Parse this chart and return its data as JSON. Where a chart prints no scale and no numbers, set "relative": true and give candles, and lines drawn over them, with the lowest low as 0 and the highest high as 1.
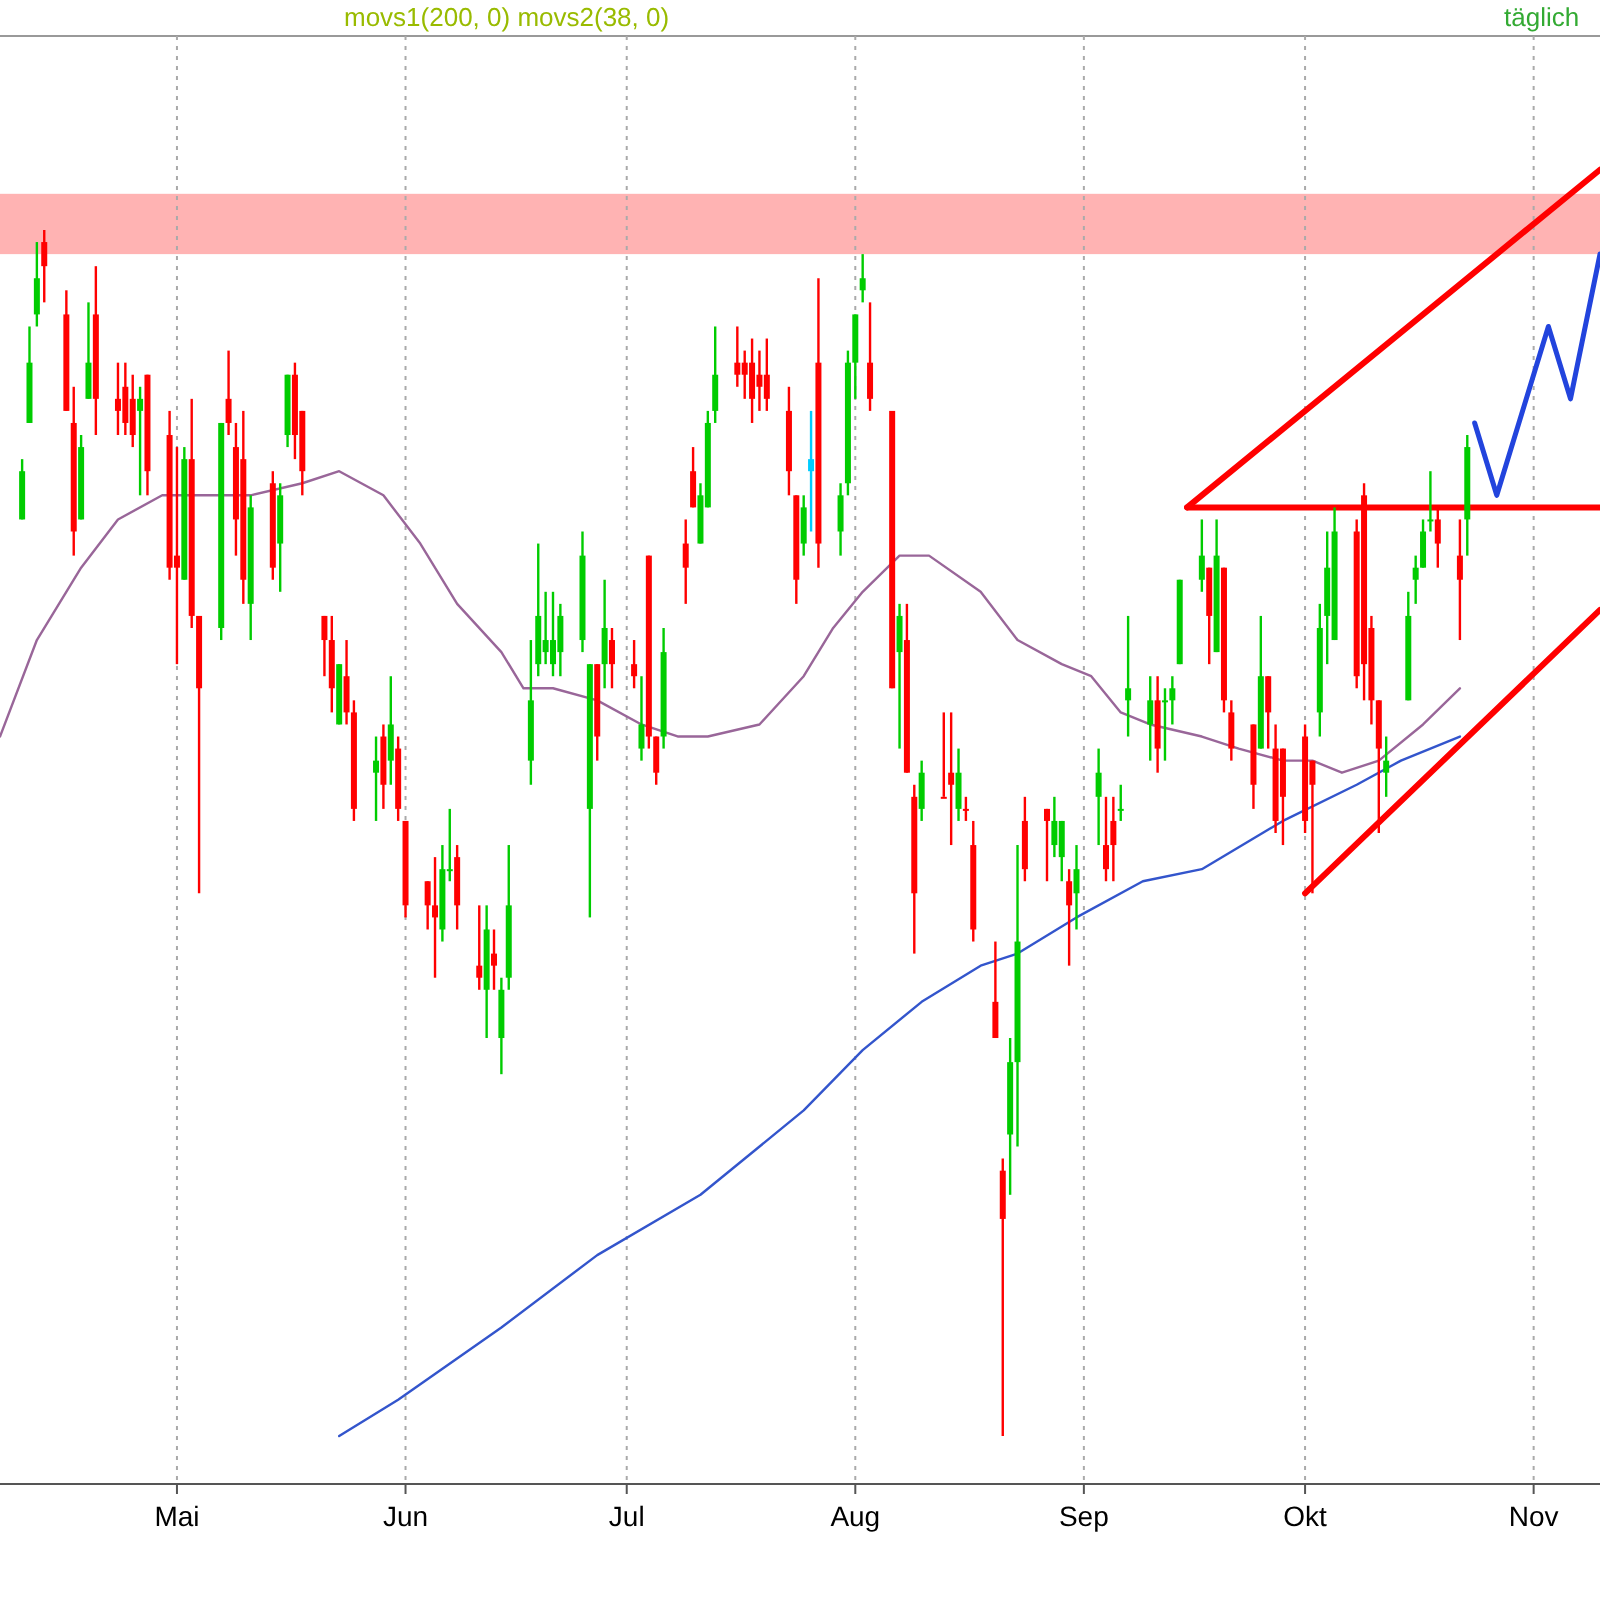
{
  "chart_data": {
    "type": "candlestick",
    "relative": true,
    "grid": "x",
    "annotations": [
      "movs1(200, 0) movs2(38, 0)",
      "täglich"
    ],
    "xlim": [
      "--04-07",
      "--11-10"
    ],
    "xticks": [
      {
        "value": "--05-01",
        "label": "Mai"
      },
      {
        "value": "--06-01",
        "label": "Jun"
      },
      {
        "value": "--07-01",
        "label": "Jul"
      },
      {
        "value": "--08-01",
        "label": "Aug"
      },
      {
        "value": "--09-01",
        "label": "Sep"
      },
      {
        "value": "--10-01",
        "label": "Okt"
      },
      {
        "value": "--11-01",
        "label": "Nov"
      }
    ],
    "bands": [
      {
        "axis": "y",
        "from": 0.98,
        "to": 1.03,
        "color": "#ffb3b3"
      }
    ],
    "x": [
      "--04-10",
      "--04-11",
      "--04-12",
      "--04-13",
      "--04-16",
      "--04-17",
      "--04-18",
      "--04-19",
      "--04-20",
      "--04-23",
      "--04-24",
      "--04-25",
      "--04-26",
      "--04-27",
      "--04-30",
      "--05-01",
      "--05-02",
      "--05-03",
      "--05-04",
      "--05-07",
      "--05-08",
      "--05-09",
      "--05-10",
      "--05-11",
      "--05-14",
      "--05-15",
      "--05-16",
      "--05-17",
      "--05-18",
      "--05-21",
      "--05-22",
      "--05-23",
      "--05-24",
      "--05-25",
      "--05-28",
      "--05-29",
      "--05-30",
      "--05-31",
      "--06-01",
      "--06-04",
      "--06-05",
      "--06-06",
      "--06-07",
      "--06-08",
      "--06-11",
      "--06-12",
      "--06-13",
      "--06-14",
      "--06-15",
      "--06-18",
      "--06-19",
      "--06-20",
      "--06-21",
      "--06-22",
      "--06-25",
      "--06-26",
      "--06-27",
      "--06-28",
      "--06-29",
      "--07-02",
      "--07-03",
      "--07-04",
      "--07-05",
      "--07-06",
      "--07-09",
      "--07-10",
      "--07-11",
      "--07-12",
      "--07-13",
      "--07-16",
      "--07-17",
      "--07-18",
      "--07-19",
      "--07-20",
      "--07-23",
      "--07-24",
      "--07-25",
      "--07-26",
      "--07-27",
      "--07-30",
      "--07-31",
      "--08-01",
      "--08-02",
      "--08-03",
      "--08-06",
      "--08-07",
      "--08-08",
      "--08-09",
      "--08-10",
      "--08-13",
      "--08-14",
      "--08-15",
      "--08-16",
      "--08-17",
      "--08-20",
      "--08-21",
      "--08-22",
      "--08-23",
      "--08-24",
      "--08-27",
      "--08-28",
      "--08-29",
      "--08-30",
      "--08-31",
      "--09-03",
      "--09-04",
      "--09-05",
      "--09-06",
      "--09-07",
      "--09-10",
      "--09-11",
      "--09-12",
      "--09-13",
      "--09-14",
      "--09-17",
      "--09-18",
      "--09-19",
      "--09-20",
      "--09-21",
      "--09-24",
      "--09-25",
      "--09-26",
      "--09-27",
      "--09-28",
      "--10-01",
      "--10-02",
      "--10-03",
      "--10-04",
      "--10-05",
      "--10-08",
      "--10-09",
      "--10-10",
      "--10-11",
      "--10-12",
      "--10-15",
      "--10-16",
      "--10-17",
      "--10-18",
      "--10-19",
      "--10-22",
      "--10-23"
    ],
    "ohlc": [
      [
        0.76,
        0.81,
        0.76,
        0.8
      ],
      [
        0.84,
        0.92,
        0.84,
        0.89
      ],
      [
        0.93,
        0.99,
        0.92,
        0.96
      ],
      [
        0.99,
        1.0,
        0.94,
        0.97
      ],
      [
        0.93,
        0.95,
        0.85,
        0.85
      ],
      [
        0.84,
        0.87,
        0.73,
        0.75
      ],
      [
        0.76,
        0.83,
        0.76,
        0.82
      ],
      [
        0.86,
        0.94,
        0.86,
        0.89
      ],
      [
        0.93,
        0.97,
        0.83,
        0.86
      ],
      [
        0.86,
        0.89,
        0.83,
        0.85
      ],
      [
        0.87,
        0.89,
        0.83,
        0.84
      ],
      [
        0.86,
        0.88,
        0.82,
        0.83
      ],
      [
        0.85,
        0.87,
        0.78,
        0.86
      ],
      [
        0.88,
        0.88,
        0.78,
        0.8
      ],
      [
        0.83,
        0.85,
        0.71,
        0.72
      ],
      [
        0.73,
        0.82,
        0.64,
        0.72
      ],
      [
        0.71,
        0.82,
        0.71,
        0.81
      ],
      [
        0.81,
        0.86,
        0.67,
        0.68
      ],
      [
        0.68,
        0.68,
        0.45,
        0.62
      ],
      [
        0.67,
        0.84,
        0.66,
        0.84
      ],
      [
        0.86,
        0.9,
        0.83,
        0.84
      ],
      [
        0.82,
        0.84,
        0.73,
        0.76
      ],
      [
        0.81,
        0.85,
        0.69,
        0.71
      ],
      [
        0.69,
        0.78,
        0.66,
        0.77
      ],
      [
        0.79,
        0.8,
        0.71,
        0.72
      ],
      [
        0.74,
        0.79,
        0.7,
        0.78
      ],
      [
        0.83,
        0.88,
        0.82,
        0.88
      ],
      [
        0.88,
        0.89,
        0.81,
        0.83
      ],
      [
        0.85,
        0.85,
        0.78,
        0.8
      ],
      [
        0.68,
        0.68,
        0.63,
        0.66
      ],
      [
        0.66,
        0.68,
        0.6,
        0.62
      ],
      [
        0.59,
        0.64,
        0.59,
        0.64
      ],
      [
        0.63,
        0.66,
        0.59,
        0.6
      ],
      [
        0.6,
        0.61,
        0.51,
        0.52
      ],
      [
        0.55,
        0.58,
        0.51,
        0.56
      ],
      [
        0.58,
        0.59,
        0.52,
        0.54
      ],
      [
        0.56,
        0.63,
        0.54,
        0.59
      ],
      [
        0.57,
        0.58,
        0.51,
        0.52
      ],
      [
        0.51,
        0.51,
        0.43,
        0.44
      ],
      [
        0.46,
        0.46,
        0.42,
        0.44
      ],
      [
        0.44,
        0.48,
        0.38,
        0.43
      ],
      [
        0.42,
        0.49,
        0.41,
        0.47
      ],
      [
        0.47,
        0.52,
        0.46,
        0.47
      ],
      [
        0.48,
        0.49,
        0.42,
        0.44
      ],
      [
        0.39,
        0.44,
        0.37,
        0.38
      ],
      [
        0.37,
        0.44,
        0.33,
        0.42
      ],
      [
        0.4,
        0.42,
        0.37,
        0.39
      ],
      [
        0.33,
        0.38,
        0.3,
        0.37
      ],
      [
        0.38,
        0.49,
        0.37,
        0.44
      ],
      [
        0.56,
        0.66,
        0.54,
        0.61
      ],
      [
        0.64,
        0.74,
        0.63,
        0.68
      ],
      [
        0.65,
        0.7,
        0.64,
        0.66
      ],
      [
        0.64,
        0.7,
        0.63,
        0.66
      ],
      [
        0.65,
        0.69,
        0.63,
        0.68
      ],
      [
        0.66,
        0.75,
        0.65,
        0.73
      ],
      [
        0.52,
        0.64,
        0.43,
        0.64
      ],
      [
        0.64,
        0.64,
        0.56,
        0.58
      ],
      [
        0.64,
        0.71,
        0.62,
        0.67
      ],
      [
        0.66,
        0.67,
        0.62,
        0.64
      ],
      [
        0.64,
        0.66,
        0.62,
        0.63
      ],
      [
        0.57,
        0.63,
        0.56,
        0.59
      ],
      [
        0.73,
        0.73,
        0.57,
        0.58
      ],
      [
        0.58,
        0.58,
        0.54,
        0.55
      ],
      [
        0.58,
        0.67,
        0.57,
        0.65
      ],
      [
        0.74,
        0.76,
        0.69,
        0.72
      ],
      [
        0.8,
        0.82,
        0.77,
        0.77
      ],
      [
        0.74,
        0.79,
        0.74,
        0.78
      ],
      [
        0.77,
        0.85,
        0.77,
        0.84
      ],
      [
        0.85,
        0.92,
        0.84,
        0.88
      ],
      [
        0.89,
        0.92,
        0.87,
        0.88
      ],
      [
        0.89,
        0.9,
        0.86,
        0.88
      ],
      [
        0.89,
        0.91,
        0.84,
        0.86
      ],
      [
        0.88,
        0.9,
        0.85,
        0.87
      ],
      [
        0.88,
        0.91,
        0.85,
        0.86
      ],
      [
        0.85,
        0.87,
        0.78,
        0.8
      ],
      [
        0.78,
        0.78,
        0.69,
        0.71
      ],
      [
        0.74,
        0.78,
        0.73,
        0.77
      ],
      [
        0.8,
        0.85,
        0.75,
        0.81
      ],
      [
        0.89,
        0.96,
        0.72,
        0.74
      ],
      [
        0.75,
        0.79,
        0.73,
        0.78
      ],
      [
        0.79,
        0.9,
        0.78,
        0.89
      ],
      [
        0.89,
        0.93,
        0.86,
        0.93
      ],
      [
        0.95,
        0.98,
        0.94,
        0.96
      ],
      [
        0.89,
        0.94,
        0.85,
        0.86
      ],
      [
        0.85,
        0.85,
        0.62,
        0.62
      ],
      [
        0.65,
        0.69,
        0.57,
        0.68
      ],
      [
        0.66,
        0.69,
        0.55,
        0.55
      ],
      [
        0.53,
        0.54,
        0.4,
        0.45
      ],
      [
        0.52,
        0.56,
        0.51,
        0.55
      ],
      [
        0.53,
        0.6,
        0.53,
        0.53
      ],
      [
        0.55,
        0.6,
        0.49,
        0.54
      ],
      [
        0.52,
        0.57,
        0.51,
        0.55
      ],
      [
        0.52,
        0.53,
        0.51,
        0.52
      ],
      [
        0.49,
        0.51,
        0.41,
        0.42
      ],
      [
        0.36,
        0.41,
        0.33,
        0.33
      ],
      [
        0.22,
        0.23,
        0.0,
        0.18
      ],
      [
        0.25,
        0.33,
        0.2,
        0.31
      ],
      [
        0.31,
        0.49,
        0.24,
        0.41
      ],
      [
        0.51,
        0.53,
        0.46,
        0.47
      ],
      [
        0.52,
        0.52,
        0.46,
        0.51
      ],
      [
        0.49,
        0.53,
        0.48,
        0.51
      ],
      [
        0.48,
        0.51,
        0.46,
        0.51
      ],
      [
        0.46,
        0.47,
        0.39,
        0.44
      ],
      [
        0.45,
        0.49,
        0.42,
        0.47
      ],
      [
        0.53,
        0.57,
        0.49,
        0.55
      ],
      [
        0.49,
        0.53,
        0.46,
        0.47
      ],
      [
        0.51,
        0.53,
        0.46,
        0.49
      ],
      [
        0.52,
        0.54,
        0.51,
        0.52
      ],
      [
        0.61,
        0.68,
        0.58,
        0.62
      ],
      [
        0.59,
        0.63,
        0.56,
        0.61
      ],
      [
        0.61,
        0.63,
        0.55,
        0.57
      ],
      [
        0.61,
        0.62,
        0.56,
        0.61
      ],
      [
        0.61,
        0.63,
        0.59,
        0.62
      ],
      [
        0.64,
        0.71,
        0.64,
        0.71
      ],
      [
        0.71,
        0.76,
        0.7,
        0.73
      ],
      [
        0.72,
        0.72,
        0.64,
        0.68
      ],
      [
        0.65,
        0.76,
        0.65,
        0.73
      ],
      [
        0.72,
        0.72,
        0.6,
        0.61
      ],
      [
        0.6,
        0.61,
        0.56,
        0.57
      ],
      [
        0.59,
        0.59,
        0.52,
        0.54
      ],
      [
        0.57,
        0.68,
        0.57,
        0.63
      ],
      [
        0.63,
        0.63,
        0.57,
        0.6
      ],
      [
        0.57,
        0.59,
        0.5,
        0.51
      ],
      [
        0.57,
        0.57,
        0.49,
        0.53
      ],
      [
        0.58,
        0.59,
        0.5,
        0.51
      ],
      [
        0.56,
        0.56,
        0.45,
        0.54
      ],
      [
        0.6,
        0.69,
        0.58,
        0.67
      ],
      [
        0.68,
        0.75,
        0.64,
        0.72
      ],
      [
        0.66,
        0.77,
        0.66,
        0.75
      ],
      [
        0.75,
        0.76,
        0.62,
        0.63
      ],
      [
        0.78,
        0.79,
        0.61,
        0.64
      ],
      [
        0.67,
        0.68,
        0.59,
        0.61
      ],
      [
        0.61,
        0.61,
        0.5,
        0.57
      ],
      [
        0.55,
        0.58,
        0.53,
        0.56
      ],
      [
        0.61,
        0.7,
        0.61,
        0.68
      ],
      [
        0.71,
        0.73,
        0.69,
        0.72
      ],
      [
        0.72,
        0.76,
        0.72,
        0.75
      ],
      [
        0.76,
        0.8,
        0.75,
        0.76
      ],
      [
        0.76,
        0.77,
        0.72,
        0.74
      ],
      [
        0.73,
        0.76,
        0.66,
        0.71
      ],
      [
        0.76,
        0.83,
        0.73,
        0.82
      ]
    ],
    "colors": [
      "#00cc00",
      "#00cc00",
      "#00cc00",
      "#ff0000",
      "#ff0000",
      "#ff0000",
      "#00cc00",
      "#00cc00",
      "#ff0000",
      "#ff0000",
      "#ff0000",
      "#ff0000",
      "#00cc00",
      "#ff0000",
      "#ff0000",
      "#ff0000",
      "#00cc00",
      "#ff0000",
      "#ff0000",
      "#00cc00",
      "#ff0000",
      "#ff0000",
      "#ff0000",
      "#00cc00",
      "#ff0000",
      "#00cc00",
      "#00cc00",
      "#ff0000",
      "#ff0000",
      "#ff0000",
      "#ff0000",
      "#00cc00",
      "#ff0000",
      "#ff0000",
      "#00cc00",
      "#ff0000",
      "#00cc00",
      "#ff0000",
      "#ff0000",
      "#ff0000",
      "#ff0000",
      "#00cc00",
      "#00cc00",
      "#ff0000",
      "#ff0000",
      "#00cc00",
      "#ff0000",
      "#00cc00",
      "#00cc00",
      "#00cc00",
      "#00cc00",
      "#00cc00",
      "#00cc00",
      "#00cc00",
      "#00cc00",
      "#00cc00",
      "#ff0000",
      "#00cc00",
      "#ff0000",
      "#ff0000",
      "#00cc00",
      "#ff0000",
      "#ff0000",
      "#00cc00",
      "#ff0000",
      "#ff0000",
      "#00cc00",
      "#00cc00",
      "#00cc00",
      "#ff0000",
      "#ff0000",
      "#ff0000",
      "#ff0000",
      "#ff0000",
      "#ff0000",
      "#ff0000",
      "#00cc00",
      "#00ccff",
      "#ff0000",
      "#00cc00",
      "#00cc00",
      "#00cc00",
      "#00cc00",
      "#ff0000",
      "#ff0000",
      "#00cc00",
      "#ff0000",
      "#ff0000",
      "#00cc00",
      "#ff0000",
      "#ff0000",
      "#00cc00",
      "#ff0000",
      "#ff0000",
      "#ff0000",
      "#ff0000",
      "#00cc00",
      "#00cc00",
      "#ff0000",
      "#ff0000",
      "#00cc00",
      "#00cc00",
      "#ff0000",
      "#00cc00",
      "#00cc00",
      "#ff0000",
      "#ff0000",
      "#00cc00",
      "#00cc00",
      "#00cc00",
      "#ff0000",
      "#00cc00",
      "#00cc00",
      "#00cc00",
      "#00cc00",
      "#ff0000",
      "#00cc00",
      "#ff0000",
      "#ff0000",
      "#ff0000",
      "#00cc00",
      "#ff0000",
      "#ff0000",
      "#ff0000",
      "#ff0000",
      "#ff0000",
      "#00cc00",
      "#00cc00",
      "#00cc00",
      "#ff0000",
      "#ff0000",
      "#ff0000",
      "#ff0000",
      "#00cc00",
      "#00cc00",
      "#00cc00",
      "#00cc00",
      "#00cc00",
      "#ff0000",
      "#ff0000",
      "#00cc00"
    ],
    "series": [
      {
        "type": "line",
        "color": "#996699",
        "x": [
          "--04-07",
          "--04-12",
          "--04-18",
          "--04-23",
          "--04-29",
          "--05-04",
          "--05-11",
          "--05-18",
          "--05-23",
          "--05-29",
          "--06-03",
          "--06-08",
          "--06-14",
          "--06-17",
          "--06-21",
          "--06-27",
          "--07-03",
          "--07-08",
          "--07-12",
          "--07-19",
          "--07-25",
          "--07-29",
          "--08-02",
          "--08-07",
          "--08-11",
          "--08-18",
          "--08-23",
          "--08-29",
          "--09-02",
          "--09-06",
          "--09-10",
          "--09-17",
          "--09-22",
          "--09-28",
          "--10-02",
          "--10-06",
          "--10-11",
          "--10-17",
          "--10-22"
        ],
        "values": [
          0.58,
          0.66,
          0.72,
          0.76,
          0.78,
          0.78,
          0.78,
          0.79,
          0.8,
          0.78,
          0.74,
          0.69,
          0.65,
          0.62,
          0.62,
          0.61,
          0.59,
          0.58,
          0.58,
          0.59,
          0.63,
          0.67,
          0.7,
          0.73,
          0.73,
          0.7,
          0.66,
          0.64,
          0.63,
          0.6,
          0.59,
          0.58,
          0.57,
          0.56,
          0.56,
          0.55,
          0.56,
          0.59,
          0.62
        ]
      },
      {
        "type": "line",
        "color": "#3355cc",
        "x": [
          "--05-23",
          "--05-31",
          "--06-14",
          "--06-27",
          "--07-11",
          "--07-25",
          "--08-02",
          "--08-10",
          "--08-18",
          "--08-23",
          "--08-31",
          "--09-09",
          "--09-17",
          "--09-28",
          "--10-08",
          "--10-14",
          "--10-22"
        ],
        "values": [
          0,
          0.03,
          0.09,
          0.15,
          0.2,
          0.27,
          0.32,
          0.36,
          0.39,
          0.4,
          0.43,
          0.46,
          0.47,
          0.51,
          0.54,
          0.56,
          0.58
        ]
      },
      {
        "type": "line",
        "color": "#ff0000",
        "x": [
          "--09-15",
          "--11-10"
        ],
        "values": [
          0.77,
          0.77
        ]
      },
      {
        "type": "line",
        "color": "#ff0000",
        "x": [
          "--09-15",
          "--11-10"
        ],
        "values": [
          0.77,
          1.05
        ]
      },
      {
        "type": "line",
        "color": "#ff0000",
        "x": [
          "--10-01",
          "--11-10"
        ],
        "values": [
          0.45,
          0.685
        ]
      },
      {
        "type": "line",
        "color": "#2244dd",
        "x": [
          "--10-24",
          "--10-27",
          "--11-03",
          "--11-06",
          "--11-10"
        ],
        "values": [
          0.84,
          0.78,
          0.92,
          0.86,
          0.98
        ]
      }
    ]
  }
}
